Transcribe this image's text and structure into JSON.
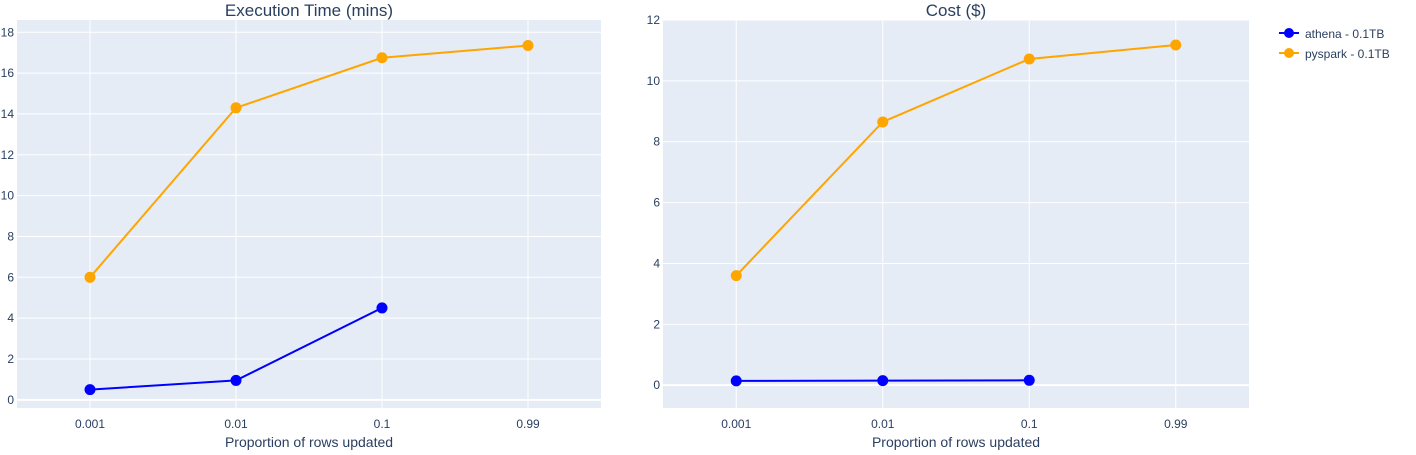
{
  "legend": {
    "position": "top-right",
    "items": [
      {
        "label": "athena - 0.1TB",
        "color": "#0000ff"
      },
      {
        "label": "pyspark - 0.1TB",
        "color": "#ffa500"
      }
    ]
  },
  "chart_data": [
    {
      "type": "line",
      "title": "Execution Time (mins)",
      "xlabel": "Proportion of rows updated",
      "ylabel": "",
      "categories": [
        "0.001",
        "0.01",
        "0.1",
        "0.99"
      ],
      "ylim": [
        -0.4,
        18.6
      ],
      "yticks": [
        "0",
        "2",
        "4",
        "6",
        "8",
        "10",
        "12",
        "14",
        "16",
        "18"
      ],
      "grid": true,
      "series": [
        {
          "name": "athena - 0.1TB",
          "color": "#0000ff",
          "values": [
            0.5,
            0.95,
            4.5,
            null
          ]
        },
        {
          "name": "pyspark - 0.1TB",
          "color": "#ffa500",
          "values": [
            6.0,
            14.3,
            16.75,
            17.35
          ]
        }
      ]
    },
    {
      "type": "line",
      "title": "Cost ($)",
      "xlabel": "Proportion of rows updated",
      "ylabel": "",
      "categories": [
        "0.001",
        "0.01",
        "0.1",
        "0.99"
      ],
      "ylim": [
        -0.75,
        12
      ],
      "yticks": [
        "0",
        "2",
        "4",
        "6",
        "8",
        "10",
        "12"
      ],
      "grid": true,
      "series": [
        {
          "name": "athena - 0.1TB",
          "color": "#0000ff",
          "values": [
            0.14,
            0.15,
            0.16,
            null
          ]
        },
        {
          "name": "pyspark - 0.1TB",
          "color": "#ffa500",
          "values": [
            3.6,
            8.65,
            10.72,
            11.18
          ]
        }
      ]
    }
  ]
}
